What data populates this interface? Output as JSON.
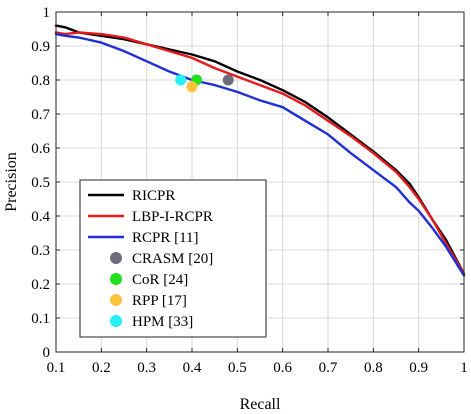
{
  "chart_data": {
    "type": "line",
    "title": "",
    "xlabel": "Recall",
    "ylabel": "Precision",
    "xlim": [
      0.1,
      1
    ],
    "ylim": [
      0,
      1
    ],
    "grid": true,
    "legend_position": "bottom-left",
    "x_ticks": [
      0.1,
      0.2,
      0.3,
      0.4,
      0.5,
      0.6,
      0.7,
      0.8,
      0.9,
      1
    ],
    "x_tick_labels": [
      "0.1",
      "0.2",
      "0.3",
      "0.4",
      "0.5",
      "0.6",
      "0.7",
      "0.8",
      "0.9",
      "1"
    ],
    "y_ticks": [
      0,
      0.1,
      0.2,
      0.3,
      0.4,
      0.5,
      0.6,
      0.7,
      0.8,
      0.9,
      1
    ],
    "y_tick_labels": [
      "0",
      "0.1",
      "0.2",
      "0.3",
      "0.4",
      "0.5",
      "0.6",
      "0.7",
      "0.8",
      "0.9",
      "1"
    ],
    "series": [
      {
        "name": "RICPR",
        "kind": "line",
        "color": "#000000",
        "x": [
          0.1,
          0.12,
          0.15,
          0.2,
          0.25,
          0.3,
          0.35,
          0.4,
          0.45,
          0.5,
          0.55,
          0.6,
          0.65,
          0.7,
          0.75,
          0.8,
          0.85,
          0.88,
          0.9,
          0.93,
          0.96,
          1.0
        ],
        "y": [
          0.96,
          0.955,
          0.94,
          0.93,
          0.92,
          0.905,
          0.89,
          0.875,
          0.855,
          0.825,
          0.8,
          0.77,
          0.735,
          0.69,
          0.64,
          0.59,
          0.535,
          0.495,
          0.455,
          0.39,
          0.33,
          0.23
        ]
      },
      {
        "name": "LBP-I-RCPR",
        "kind": "line",
        "color": "#e8191a",
        "x": [
          0.1,
          0.12,
          0.15,
          0.2,
          0.25,
          0.3,
          0.35,
          0.4,
          0.45,
          0.5,
          0.55,
          0.6,
          0.65,
          0.7,
          0.75,
          0.8,
          0.85,
          0.88,
          0.9,
          0.93,
          0.96,
          1.0
        ],
        "y": [
          0.94,
          0.935,
          0.94,
          0.935,
          0.925,
          0.905,
          0.885,
          0.865,
          0.835,
          0.81,
          0.785,
          0.76,
          0.725,
          0.68,
          0.635,
          0.585,
          0.53,
          0.485,
          0.45,
          0.39,
          0.32,
          0.23
        ]
      },
      {
        "name": "RCPR [11]",
        "kind": "line",
        "color": "#1f2fd6",
        "x": [
          0.1,
          0.12,
          0.15,
          0.2,
          0.25,
          0.3,
          0.35,
          0.4,
          0.45,
          0.5,
          0.55,
          0.6,
          0.65,
          0.7,
          0.75,
          0.8,
          0.85,
          0.88,
          0.9,
          0.93,
          0.96,
          1.0
        ],
        "y": [
          0.935,
          0.93,
          0.925,
          0.91,
          0.885,
          0.855,
          0.825,
          0.8,
          0.785,
          0.765,
          0.74,
          0.72,
          0.68,
          0.64,
          0.585,
          0.535,
          0.485,
          0.44,
          0.415,
          0.365,
          0.31,
          0.225
        ]
      },
      {
        "name": "CRASM [20]",
        "kind": "point",
        "color": "#6c6c7e",
        "x": [
          0.48
        ],
        "y": [
          0.8
        ]
      },
      {
        "name": "CoR [24]",
        "kind": "point",
        "color": "#22e01e",
        "x": [
          0.41
        ],
        "y": [
          0.8
        ]
      },
      {
        "name": "RPP [17]",
        "kind": "point",
        "color": "#ffc23d",
        "x": [
          0.4
        ],
        "y": [
          0.78
        ]
      },
      {
        "name": "HPM [33]",
        "kind": "point",
        "color": "#26f0f7",
        "x": [
          0.375
        ],
        "y": [
          0.8
        ]
      }
    ]
  }
}
